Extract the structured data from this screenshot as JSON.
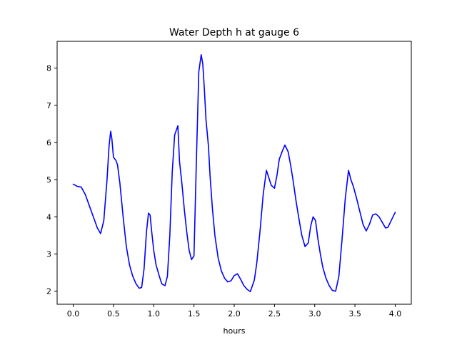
{
  "chart_data": {
    "type": "line",
    "title": "Water Depth h at gauge 6",
    "xlabel": "hours",
    "ylabel": "",
    "xlim": [
      -0.2,
      4.2
    ],
    "ylim": [
      1.65,
      8.72
    ],
    "xticks": [
      0.0,
      0.5,
      1.0,
      1.5,
      2.0,
      2.5,
      3.0,
      3.5,
      4.0
    ],
    "xtick_labels": [
      "0.0",
      "0.5",
      "1.0",
      "1.5",
      "2.0",
      "2.5",
      "3.0",
      "3.5",
      "4.0"
    ],
    "yticks": [
      2,
      3,
      4,
      5,
      6,
      7,
      8
    ],
    "ytick_labels": [
      "2",
      "3",
      "4",
      "5",
      "6",
      "7",
      "8"
    ],
    "grid": false,
    "series": [
      {
        "color": "#0000ff",
        "x": [
          0.0,
          0.05,
          0.1,
          0.15,
          0.2,
          0.25,
          0.3,
          0.34,
          0.38,
          0.42,
          0.445,
          0.465,
          0.48,
          0.5,
          0.53,
          0.55,
          0.58,
          0.62,
          0.66,
          0.7,
          0.74,
          0.78,
          0.82,
          0.85,
          0.88,
          0.91,
          0.935,
          0.955,
          0.975,
          1.0,
          1.03,
          1.07,
          1.1,
          1.14,
          1.17,
          1.2,
          1.23,
          1.26,
          1.3,
          1.32,
          1.35,
          1.38,
          1.41,
          1.44,
          1.47,
          1.5,
          1.53,
          1.56,
          1.59,
          1.61,
          1.63,
          1.65,
          1.68,
          1.7,
          1.73,
          1.76,
          1.8,
          1.84,
          1.88,
          1.92,
          1.96,
          2.0,
          2.04,
          2.08,
          2.12,
          2.16,
          2.2,
          2.25,
          2.28,
          2.32,
          2.36,
          2.4,
          2.43,
          2.46,
          2.5,
          2.53,
          2.56,
          2.6,
          2.63,
          2.67,
          2.7,
          2.73,
          2.77,
          2.8,
          2.84,
          2.88,
          2.92,
          2.95,
          2.98,
          3.01,
          3.04,
          3.07,
          3.1,
          3.14,
          3.18,
          3.22,
          3.26,
          3.3,
          3.34,
          3.38,
          3.42,
          3.45,
          3.48,
          3.52,
          3.56,
          3.6,
          3.64,
          3.68,
          3.72,
          3.76,
          3.8,
          3.84,
          3.88,
          3.91,
          3.95,
          4.0
        ],
        "y": [
          4.88,
          4.82,
          4.8,
          4.6,
          4.3,
          4.0,
          3.7,
          3.55,
          3.9,
          5.0,
          5.9,
          6.3,
          6.1,
          5.6,
          5.52,
          5.4,
          4.9,
          4.0,
          3.2,
          2.7,
          2.4,
          2.2,
          2.08,
          2.1,
          2.6,
          3.6,
          4.1,
          4.05,
          3.6,
          3.1,
          2.7,
          2.4,
          2.2,
          2.15,
          2.4,
          3.5,
          5.2,
          6.2,
          6.45,
          5.5,
          4.9,
          4.2,
          3.6,
          3.1,
          2.85,
          2.95,
          5.5,
          7.9,
          8.36,
          8.1,
          7.4,
          6.6,
          5.9,
          5.1,
          4.2,
          3.5,
          2.9,
          2.55,
          2.35,
          2.25,
          2.28,
          2.42,
          2.47,
          2.32,
          2.15,
          2.05,
          1.99,
          2.3,
          2.75,
          3.6,
          4.6,
          5.25,
          5.05,
          4.85,
          4.77,
          5.1,
          5.55,
          5.78,
          5.93,
          5.75,
          5.4,
          5.0,
          4.4,
          4.0,
          3.5,
          3.2,
          3.3,
          3.75,
          4.0,
          3.9,
          3.4,
          3.0,
          2.65,
          2.35,
          2.15,
          2.02,
          2.0,
          2.4,
          3.4,
          4.5,
          5.25,
          5.0,
          4.82,
          4.5,
          4.15,
          3.8,
          3.62,
          3.8,
          4.05,
          4.08,
          4.0,
          3.85,
          3.7,
          3.72,
          3.9,
          4.12
        ]
      }
    ]
  }
}
